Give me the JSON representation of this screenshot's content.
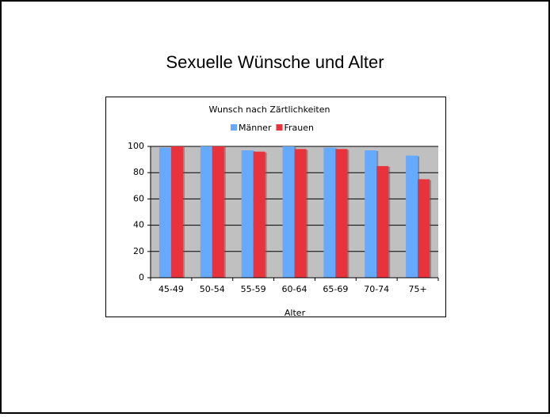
{
  "slide_title": "Sexuelle Wünsche und Alter",
  "chart_data": {
    "type": "bar",
    "title": "Wunsch nach Zärtlichkeiten",
    "categories": [
      "45-49",
      "50-54",
      "55-59",
      "60-64",
      "65-69",
      "70-74",
      "75+"
    ],
    "series": [
      {
        "name": "Männer",
        "color": "#66aaff",
        "values": [
          99,
          100,
          97,
          100,
          99,
          97,
          93
        ]
      },
      {
        "name": "Frauen",
        "color": "#e8323c",
        "values": [
          100,
          100,
          96,
          98,
          98,
          85,
          75
        ]
      }
    ],
    "x_label": "Alter",
    "ylim": [
      0,
      100
    ],
    "yticks": [
      0,
      20,
      40,
      60,
      80,
      100
    ],
    "grid": true,
    "legend": "top"
  }
}
